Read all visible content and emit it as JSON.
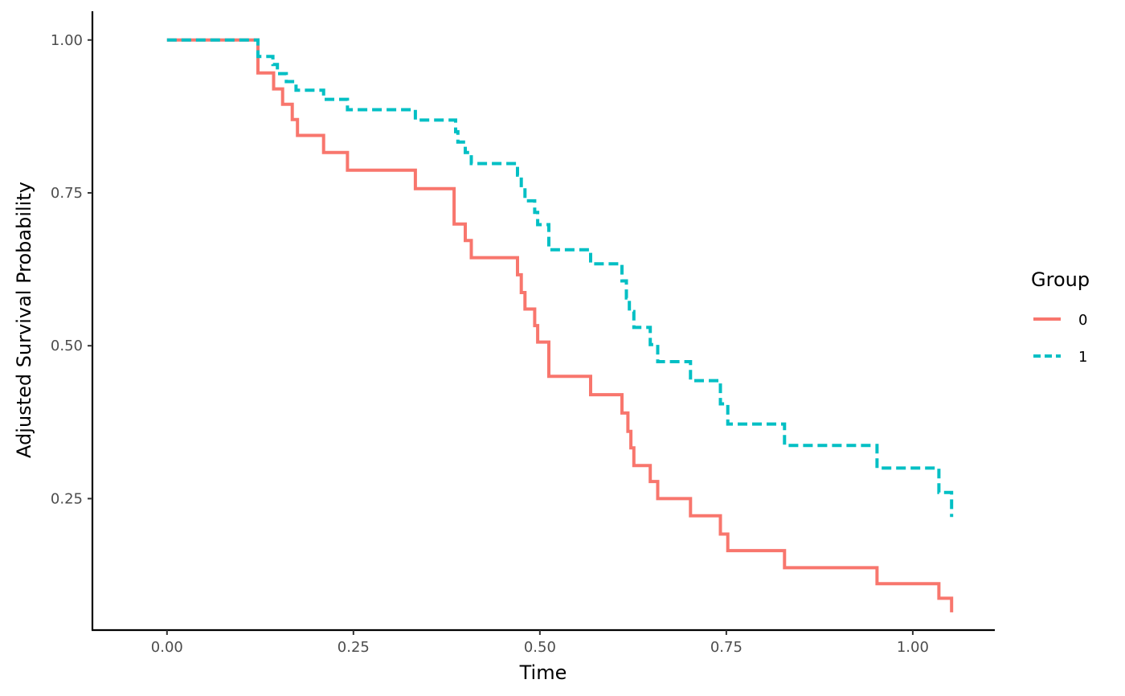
{
  "chart_data": {
    "type": "line",
    "step": true,
    "xlabel": "Time",
    "ylabel": "Adjusted Survival Probability",
    "xlim": [
      -0.1,
      1.11
    ],
    "ylim": [
      0.035,
      1.047
    ],
    "x_ticks": [
      0.0,
      0.25,
      0.5,
      0.75,
      1.0
    ],
    "x_tick_labels": [
      "0.00",
      "0.25",
      "0.50",
      "0.75",
      "1.00"
    ],
    "y_ticks": [
      0.25,
      0.5,
      0.75,
      1.0
    ],
    "y_tick_labels": [
      "0.25",
      "0.50",
      "0.75",
      "1.00"
    ],
    "grid": false,
    "legend": {
      "title": "Group",
      "position": "right"
    },
    "series": [
      {
        "name": "0",
        "color": "#F8766D",
        "dash": "solid",
        "points": [
          [
            0.0,
            1.0
          ],
          [
            0.122,
            0.946
          ],
          [
            0.143,
            0.92
          ],
          [
            0.155,
            0.895
          ],
          [
            0.168,
            0.87
          ],
          [
            0.175,
            0.844
          ],
          [
            0.21,
            0.816
          ],
          [
            0.242,
            0.787
          ],
          [
            0.333,
            0.757
          ],
          [
            0.385,
            0.699
          ],
          [
            0.4,
            0.672
          ],
          [
            0.408,
            0.644
          ],
          [
            0.47,
            0.616
          ],
          [
            0.475,
            0.587
          ],
          [
            0.48,
            0.56
          ],
          [
            0.493,
            0.533
          ],
          [
            0.497,
            0.506
          ],
          [
            0.512,
            0.45
          ],
          [
            0.568,
            0.42
          ],
          [
            0.61,
            0.39
          ],
          [
            0.618,
            0.36
          ],
          [
            0.622,
            0.333
          ],
          [
            0.626,
            0.304
          ],
          [
            0.648,
            0.278
          ],
          [
            0.658,
            0.25
          ],
          [
            0.702,
            0.222
          ],
          [
            0.742,
            0.192
          ],
          [
            0.752,
            0.165
          ],
          [
            0.828,
            0.137
          ],
          [
            0.952,
            0.111
          ],
          [
            1.035,
            0.087
          ],
          [
            1.052,
            0.064
          ]
        ]
      },
      {
        "name": "1",
        "color": "#00BFC4",
        "dash": "dashed",
        "points": [
          [
            0.0,
            1.0
          ],
          [
            0.122,
            0.973
          ],
          [
            0.142,
            0.96
          ],
          [
            0.148,
            0.945
          ],
          [
            0.16,
            0.932
          ],
          [
            0.173,
            0.918
          ],
          [
            0.21,
            0.903
          ],
          [
            0.242,
            0.886
          ],
          [
            0.333,
            0.869
          ],
          [
            0.387,
            0.85
          ],
          [
            0.39,
            0.833
          ],
          [
            0.4,
            0.816
          ],
          [
            0.408,
            0.798
          ],
          [
            0.47,
            0.779
          ],
          [
            0.475,
            0.759
          ],
          [
            0.48,
            0.737
          ],
          [
            0.493,
            0.718
          ],
          [
            0.497,
            0.698
          ],
          [
            0.512,
            0.657
          ],
          [
            0.568,
            0.634
          ],
          [
            0.61,
            0.606
          ],
          [
            0.616,
            0.578
          ],
          [
            0.62,
            0.556
          ],
          [
            0.626,
            0.53
          ],
          [
            0.648,
            0.502
          ],
          [
            0.658,
            0.474
          ],
          [
            0.702,
            0.443
          ],
          [
            0.742,
            0.405
          ],
          [
            0.752,
            0.372
          ],
          [
            0.828,
            0.337
          ],
          [
            0.952,
            0.3
          ],
          [
            1.035,
            0.26
          ],
          [
            1.052,
            0.22
          ]
        ]
      }
    ]
  }
}
